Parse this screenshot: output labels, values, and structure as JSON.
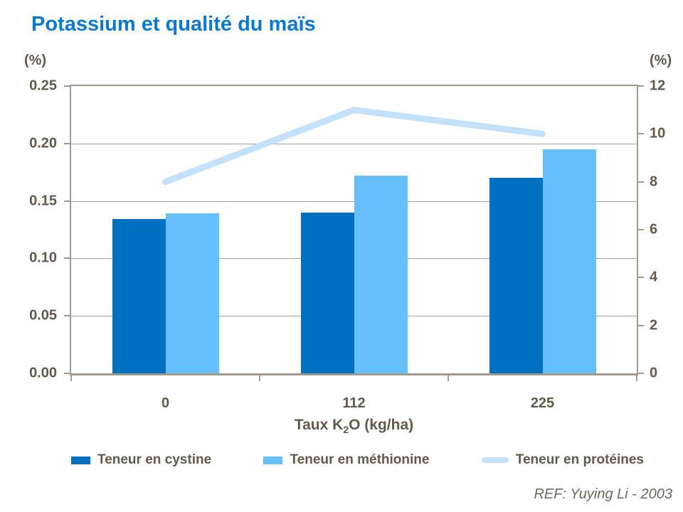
{
  "title": "Potassium et qualité du maïs",
  "left_axis": {
    "unit": "(%)",
    "ticks": [
      "0.25",
      "0.20",
      "0.15",
      "0.10",
      "0.05",
      "0.00"
    ]
  },
  "right_axis": {
    "unit": "(%)",
    "ticks": [
      "12",
      "10",
      "8",
      "6",
      "4",
      "2",
      "0"
    ]
  },
  "x_axis": {
    "categories": [
      "0",
      "112",
      "225"
    ],
    "title_pre": "Taux K",
    "title_sub": "2",
    "title_post": "O (kg/ha)"
  },
  "legend": [
    {
      "label": "Teneur en cystine",
      "swatch": "square",
      "color": "#0070c0"
    },
    {
      "label": "Teneur en méthionine",
      "swatch": "square",
      "color": "#66befb"
    },
    {
      "label": "Teneur en protéines",
      "swatch": "line",
      "color": "#c3e1fa"
    }
  ],
  "footer": {
    "ref": "REF: Yuying Li - 2003"
  },
  "colors": {
    "title": "#0b79d2",
    "text": "#655849",
    "grid": "#a89f95",
    "border": "#a39a8e",
    "cystine_bar": "#0070c0",
    "methionine_bar": "#66befb",
    "proteines_line": "#c3e1fa"
  },
  "chart_data": {
    "type": "bar",
    "subtype": "bar+line dual axis",
    "title": "Potassium et qualité du maïs",
    "categories": [
      "0",
      "112",
      "225"
    ],
    "xlabel": "Taux K2O (kg/ha)",
    "left_ylabel": "(%)",
    "right_ylabel": "(%)",
    "left_ylim": [
      0,
      0.25
    ],
    "right_ylim": [
      0,
      12
    ],
    "grid": true,
    "legend_position": "bottom",
    "series": [
      {
        "name": "Teneur en cystine",
        "type": "bar",
        "axis": "left",
        "color": "#0070c0",
        "values": [
          0.134,
          0.14,
          0.17
        ]
      },
      {
        "name": "Teneur en méthionine",
        "type": "bar",
        "axis": "left",
        "color": "#66befb",
        "values": [
          0.139,
          0.172,
          0.195
        ]
      },
      {
        "name": "Teneur en protéines",
        "type": "line",
        "axis": "right",
        "color": "#c3e1fa",
        "values": [
          8,
          11,
          10
        ]
      }
    ]
  }
}
